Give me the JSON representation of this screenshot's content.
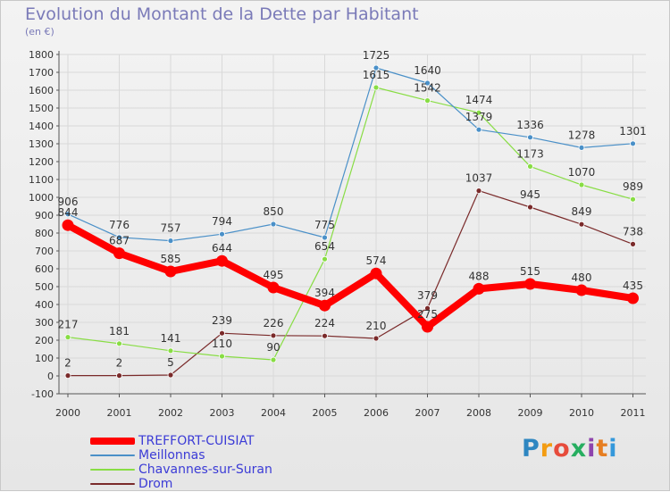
{
  "title": "Evolution du Montant de la Dette par Habitant",
  "subtitle": "(en €)",
  "logo": {
    "text": "Proxiti",
    "colors": [
      "#2e86c1",
      "#f39c12",
      "#e74c3c",
      "#27ae60",
      "#8e44ad",
      "#e67e22",
      "#3498db"
    ]
  },
  "chart_data": {
    "type": "line",
    "title": "Evolution du Montant de la Dette par Habitant",
    "subtitle": "(en €)",
    "x": [
      "2000",
      "2001",
      "2002",
      "2003",
      "2004",
      "2005",
      "2006",
      "2007",
      "2008",
      "2009",
      "2010",
      "2011"
    ],
    "ylim": [
      -100,
      1800
    ],
    "yticks": [
      -100,
      0,
      100,
      200,
      300,
      400,
      500,
      600,
      700,
      800,
      900,
      1000,
      1100,
      1200,
      1300,
      1400,
      1500,
      1600,
      1700,
      1800
    ],
    "grid": true,
    "legend_position": "bottom-left",
    "series": [
      {
        "name": "TREFFORT-CUISIAT",
        "color": "#ff0000",
        "values": [
          844,
          687,
          585,
          644,
          495,
          394,
          574,
          275,
          488,
          515,
          480,
          435
        ]
      },
      {
        "name": "Meillonnas",
        "color": "#4a90c8",
        "values": [
          906,
          776,
          757,
          794,
          850,
          775,
          1725,
          1640,
          1379,
          1336,
          1278,
          1301
        ]
      },
      {
        "name": "Chavannes-sur-Suran",
        "color": "#88dd44",
        "values": [
          217,
          181,
          141,
          110,
          90,
          654,
          1615,
          1542,
          1474,
          1173,
          1070,
          989
        ]
      },
      {
        "name": "Drom",
        "color": "#7a2a2a",
        "values": [
          2,
          2,
          5,
          239,
          226,
          224,
          210,
          379,
          1037,
          945,
          849,
          738
        ]
      }
    ]
  }
}
